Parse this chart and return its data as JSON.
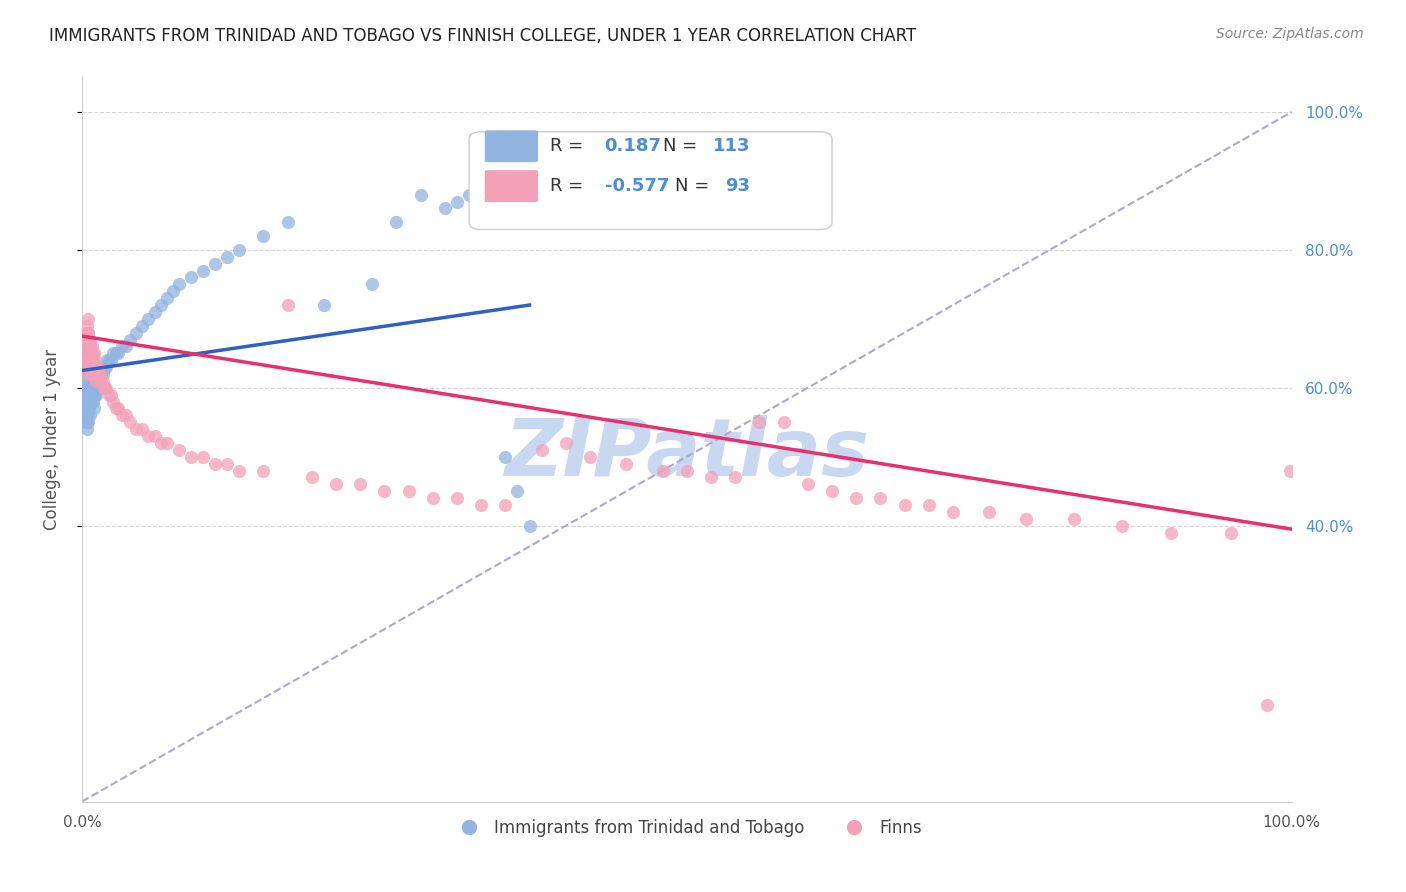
{
  "title": "IMMIGRANTS FROM TRINIDAD AND TOBAGO VS FINNISH COLLEGE, UNDER 1 YEAR CORRELATION CHART",
  "source": "Source: ZipAtlas.com",
  "ylabel": "College, Under 1 year",
  "xlim": [
    0.0,
    1.0
  ],
  "ylim": [
    0.0,
    1.05
  ],
  "blue_r": 0.187,
  "blue_n": 113,
  "pink_r": -0.577,
  "pink_n": 93,
  "blue_color": "#92b4e0",
  "pink_color": "#f4a0b8",
  "blue_line_color": "#3060c0",
  "pink_line_color": "#e8306c",
  "dashed_line_color": "#aaaacc",
  "watermark_color": "#c8d8f0",
  "background_color": "#ffffff",
  "legend_bottom_blue": "Immigrants from Trinidad and Tobago",
  "legend_bottom_pink": "Finns",
  "blue_scatter_x": [
    0.003,
    0.003,
    0.003,
    0.003,
    0.003,
    0.004,
    0.004,
    0.004,
    0.004,
    0.004,
    0.004,
    0.004,
    0.004,
    0.004,
    0.004,
    0.005,
    0.005,
    0.005,
    0.005,
    0.005,
    0.005,
    0.005,
    0.005,
    0.005,
    0.005,
    0.005,
    0.005,
    0.006,
    0.006,
    0.006,
    0.006,
    0.006,
    0.006,
    0.006,
    0.006,
    0.007,
    0.007,
    0.007,
    0.007,
    0.007,
    0.007,
    0.007,
    0.007,
    0.008,
    0.008,
    0.008,
    0.008,
    0.008,
    0.008,
    0.009,
    0.009,
    0.009,
    0.009,
    0.009,
    0.01,
    0.01,
    0.01,
    0.01,
    0.01,
    0.011,
    0.011,
    0.011,
    0.012,
    0.012,
    0.012,
    0.013,
    0.013,
    0.014,
    0.014,
    0.015,
    0.015,
    0.016,
    0.016,
    0.017,
    0.018,
    0.019,
    0.02,
    0.021,
    0.022,
    0.024,
    0.026,
    0.028,
    0.03,
    0.033,
    0.036,
    0.04,
    0.045,
    0.05,
    0.055,
    0.06,
    0.065,
    0.07,
    0.075,
    0.08,
    0.09,
    0.1,
    0.11,
    0.12,
    0.13,
    0.15,
    0.17,
    0.2,
    0.24,
    0.26,
    0.28,
    0.3,
    0.31,
    0.32,
    0.33,
    0.34,
    0.35,
    0.36,
    0.37
  ],
  "blue_scatter_y": [
    0.6,
    0.58,
    0.57,
    0.56,
    0.55,
    0.65,
    0.63,
    0.62,
    0.6,
    0.59,
    0.58,
    0.57,
    0.56,
    0.55,
    0.54,
    0.68,
    0.66,
    0.65,
    0.63,
    0.62,
    0.61,
    0.6,
    0.59,
    0.58,
    0.57,
    0.56,
    0.55,
    0.67,
    0.65,
    0.63,
    0.62,
    0.61,
    0.6,
    0.59,
    0.57,
    0.66,
    0.64,
    0.63,
    0.61,
    0.6,
    0.59,
    0.58,
    0.56,
    0.65,
    0.63,
    0.62,
    0.61,
    0.59,
    0.58,
    0.64,
    0.63,
    0.61,
    0.6,
    0.58,
    0.63,
    0.62,
    0.6,
    0.59,
    0.57,
    0.63,
    0.61,
    0.59,
    0.62,
    0.6,
    0.59,
    0.62,
    0.6,
    0.62,
    0.6,
    0.62,
    0.6,
    0.62,
    0.6,
    0.62,
    0.63,
    0.63,
    0.63,
    0.64,
    0.64,
    0.64,
    0.65,
    0.65,
    0.65,
    0.66,
    0.66,
    0.67,
    0.68,
    0.69,
    0.7,
    0.71,
    0.72,
    0.73,
    0.74,
    0.75,
    0.76,
    0.77,
    0.78,
    0.79,
    0.8,
    0.82,
    0.84,
    0.72,
    0.75,
    0.84,
    0.88,
    0.86,
    0.87,
    0.88,
    0.89,
    0.85,
    0.5,
    0.45,
    0.4
  ],
  "pink_scatter_x": [
    0.003,
    0.003,
    0.003,
    0.004,
    0.004,
    0.004,
    0.004,
    0.005,
    0.005,
    0.005,
    0.005,
    0.005,
    0.006,
    0.006,
    0.006,
    0.007,
    0.007,
    0.007,
    0.008,
    0.008,
    0.008,
    0.009,
    0.009,
    0.01,
    0.01,
    0.011,
    0.011,
    0.012,
    0.012,
    0.013,
    0.014,
    0.015,
    0.016,
    0.017,
    0.018,
    0.019,
    0.02,
    0.022,
    0.024,
    0.026,
    0.028,
    0.03,
    0.033,
    0.036,
    0.04,
    0.045,
    0.05,
    0.055,
    0.06,
    0.065,
    0.07,
    0.08,
    0.09,
    0.1,
    0.11,
    0.12,
    0.13,
    0.15,
    0.17,
    0.19,
    0.21,
    0.23,
    0.25,
    0.27,
    0.29,
    0.31,
    0.33,
    0.35,
    0.38,
    0.4,
    0.42,
    0.45,
    0.48,
    0.5,
    0.52,
    0.54,
    0.56,
    0.58,
    0.6,
    0.62,
    0.64,
    0.66,
    0.68,
    0.7,
    0.72,
    0.75,
    0.78,
    0.82,
    0.86,
    0.9,
    0.95,
    0.98,
    0.999
  ],
  "pink_scatter_y": [
    0.68,
    0.66,
    0.64,
    0.69,
    0.67,
    0.65,
    0.63,
    0.7,
    0.68,
    0.66,
    0.64,
    0.62,
    0.67,
    0.65,
    0.63,
    0.67,
    0.65,
    0.63,
    0.66,
    0.64,
    0.62,
    0.65,
    0.63,
    0.65,
    0.63,
    0.64,
    0.62,
    0.63,
    0.61,
    0.63,
    0.62,
    0.62,
    0.61,
    0.61,
    0.6,
    0.6,
    0.6,
    0.59,
    0.59,
    0.58,
    0.57,
    0.57,
    0.56,
    0.56,
    0.55,
    0.54,
    0.54,
    0.53,
    0.53,
    0.52,
    0.52,
    0.51,
    0.5,
    0.5,
    0.49,
    0.49,
    0.48,
    0.48,
    0.72,
    0.47,
    0.46,
    0.46,
    0.45,
    0.45,
    0.44,
    0.44,
    0.43,
    0.43,
    0.51,
    0.52,
    0.5,
    0.49,
    0.48,
    0.48,
    0.47,
    0.47,
    0.55,
    0.55,
    0.46,
    0.45,
    0.44,
    0.44,
    0.43,
    0.43,
    0.42,
    0.42,
    0.41,
    0.41,
    0.4,
    0.39,
    0.39,
    0.14,
    0.48
  ],
  "blue_line_x0": 0.0,
  "blue_line_x1": 0.37,
  "blue_line_y0": 0.625,
  "blue_line_y1": 0.72,
  "pink_line_x0": 0.0,
  "pink_line_x1": 1.0,
  "pink_line_y0": 0.675,
  "pink_line_y1": 0.395
}
